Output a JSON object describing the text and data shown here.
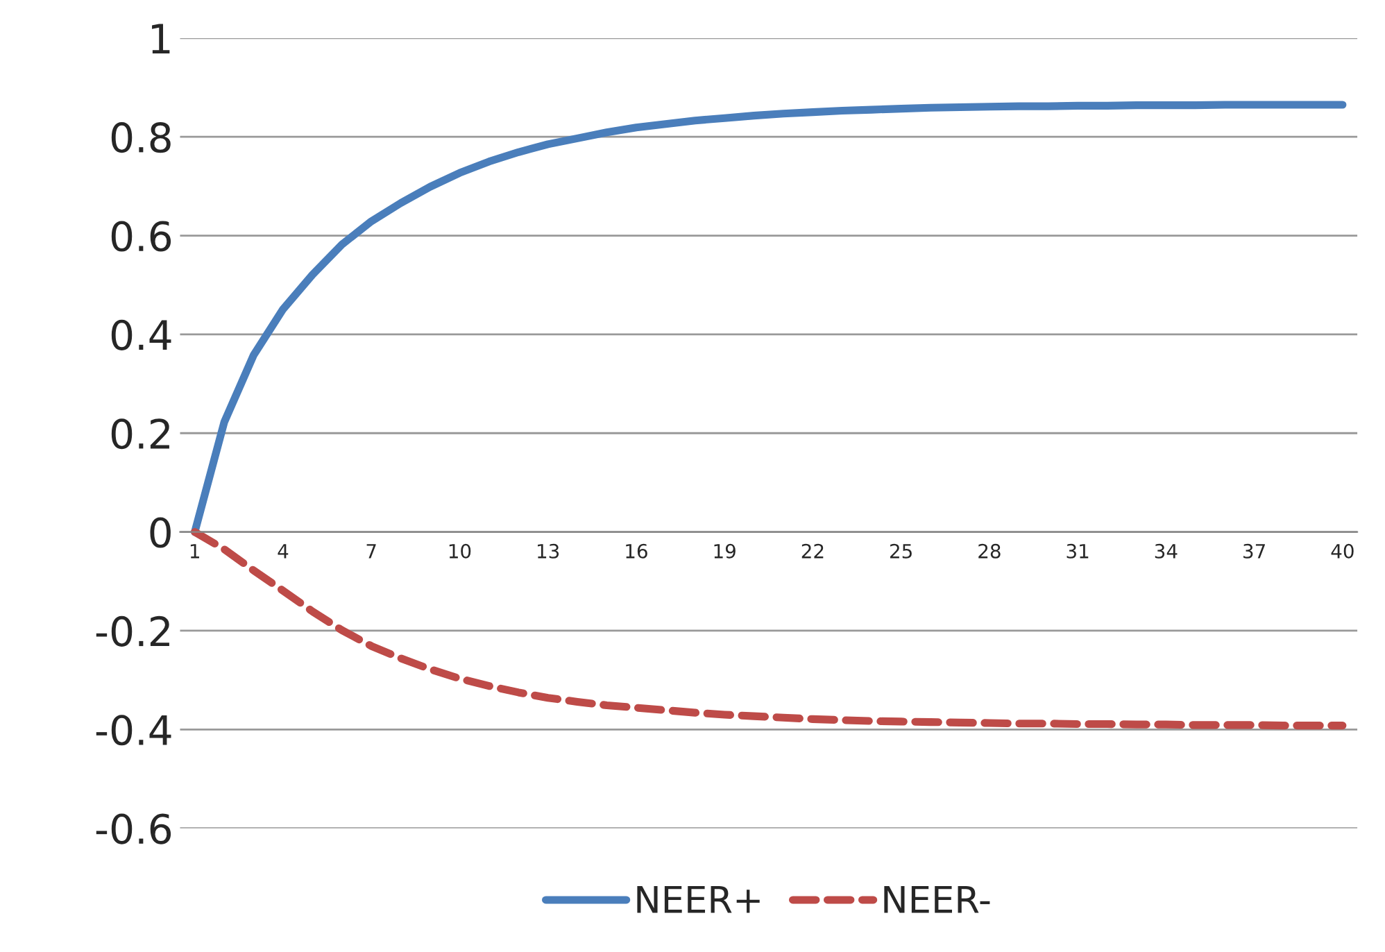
{
  "chart_data": {
    "type": "line",
    "categories": [
      "1",
      null,
      null,
      "4",
      null,
      null,
      "7",
      null,
      null,
      "10",
      null,
      null,
      "13",
      null,
      null,
      "16",
      null,
      null,
      "19",
      null,
      null,
      "22",
      null,
      null,
      "25",
      null,
      null,
      "28",
      null,
      null,
      "31",
      null,
      null,
      "34",
      null,
      null,
      "37",
      null,
      null,
      "40"
    ],
    "series": [
      {
        "name": "NEER+",
        "color": "#4a7ebb",
        "line_style": "solid",
        "values": [
          0,
          0.222,
          0.358,
          0.451,
          0.521,
          0.582,
          0.629,
          0.666,
          0.699,
          0.727,
          0.75,
          0.769,
          0.785,
          0.797,
          0.809,
          0.819,
          0.826,
          0.833,
          0.838,
          0.843,
          0.847,
          0.85,
          0.853,
          0.855,
          0.857,
          0.859,
          0.86,
          0.861,
          0.862,
          0.862,
          0.863,
          0.863,
          0.864,
          0.864,
          0.864,
          0.865,
          0.865,
          0.865,
          0.865,
          0.865
        ]
      },
      {
        "name": "NEER-",
        "color": "#be4b48",
        "line_style": "dashed",
        "values": [
          0,
          -0.035,
          -0.078,
          -0.119,
          -0.161,
          -0.199,
          -0.231,
          -0.256,
          -0.278,
          -0.297,
          -0.312,
          -0.325,
          -0.336,
          -0.344,
          -0.351,
          -0.356,
          -0.361,
          -0.366,
          -0.37,
          -0.373,
          -0.376,
          -0.379,
          -0.381,
          -0.383,
          -0.384,
          -0.385,
          -0.386,
          -0.387,
          -0.388,
          -0.388,
          -0.389,
          -0.389,
          -0.39,
          -0.39,
          -0.391,
          -0.391,
          -0.391,
          -0.392,
          -0.392,
          -0.392
        ]
      }
    ],
    "ylim": [
      -0.6,
      1
    ],
    "yticks": [
      -0.6,
      -0.4,
      -0.2,
      0,
      0.2,
      0.4,
      0.6,
      0.8,
      1
    ],
    "grid": "y",
    "legend": "bottom",
    "marker": "none"
  }
}
